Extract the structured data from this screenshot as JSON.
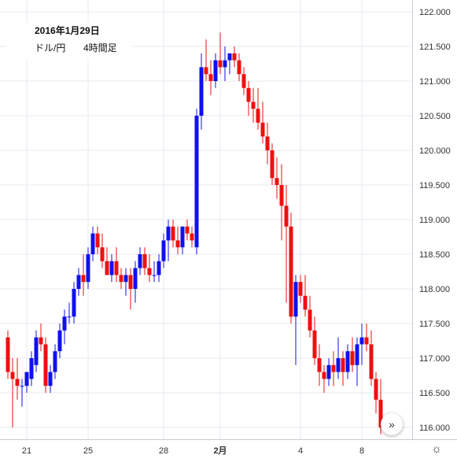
{
  "legend": {
    "date": "2016年1月29日",
    "pair": "ドル/円",
    "timeframe": "4時間足"
  },
  "icons": {
    "scroll_right": "chevron-double-right-icon",
    "settings": "gear-icon"
  },
  "colors": {
    "up": "#1010ee",
    "down": "#ee1010",
    "grid": "#e6eaf0",
    "axis_text": "#333333"
  },
  "chart_data": {
    "type": "candlestick",
    "title": "",
    "ylim": [
      115.85,
      122.1
    ],
    "yticks": [
      "116.000",
      "116.500",
      "117.000",
      "117.500",
      "118.000",
      "118.500",
      "119.000",
      "119.500",
      "120.000",
      "120.500",
      "121.000",
      "121.500",
      "122.000"
    ],
    "xticks": [
      "21",
      "25",
      "28",
      "2月",
      "4",
      "8"
    ],
    "xtick_bar_index": [
      4,
      17,
      33,
      45,
      62,
      75
    ],
    "grid": true,
    "candles": [
      [
        117.3,
        117.4,
        116.7,
        116.8
      ],
      [
        116.8,
        117.0,
        116.0,
        116.7
      ],
      [
        116.7,
        117.0,
        116.4,
        116.6
      ],
      [
        116.6,
        116.7,
        116.3,
        116.6
      ],
      [
        116.6,
        116.8,
        116.5,
        116.8
      ],
      [
        116.7,
        117.1,
        116.6,
        117.0
      ],
      [
        116.9,
        117.4,
        116.8,
        117.3
      ],
      [
        117.3,
        117.5,
        117.1,
        117.2
      ],
      [
        117.2,
        117.3,
        116.5,
        116.6
      ],
      [
        116.6,
        116.9,
        116.5,
        116.8
      ],
      [
        116.8,
        117.2,
        116.7,
        117.1
      ],
      [
        117.1,
        117.5,
        117.0,
        117.4
      ],
      [
        117.4,
        117.7,
        117.2,
        117.6
      ],
      [
        117.6,
        117.8,
        117.5,
        117.6
      ],
      [
        117.6,
        118.1,
        117.5,
        118.0
      ],
      [
        118.0,
        118.3,
        117.9,
        118.2
      ],
      [
        118.2,
        118.5,
        117.9,
        118.1
      ],
      [
        118.1,
        118.6,
        118.0,
        118.5
      ],
      [
        118.5,
        118.9,
        118.4,
        118.8
      ],
      [
        118.8,
        118.9,
        118.5,
        118.6
      ],
      [
        118.6,
        118.8,
        118.3,
        118.4
      ],
      [
        118.4,
        118.6,
        118.2,
        118.2
      ],
      [
        118.2,
        118.5,
        118.1,
        118.4
      ],
      [
        118.4,
        118.6,
        118.1,
        118.2
      ],
      [
        118.2,
        118.3,
        118.0,
        118.1
      ],
      [
        118.1,
        118.3,
        117.9,
        118.2
      ],
      [
        118.2,
        118.3,
        117.7,
        118.0
      ],
      [
        118.0,
        118.4,
        117.8,
        118.3
      ],
      [
        118.3,
        118.6,
        118.2,
        118.5
      ],
      [
        118.5,
        118.6,
        118.2,
        118.3
      ],
      [
        118.3,
        118.5,
        118.1,
        118.2
      ],
      [
        118.2,
        118.4,
        118.1,
        118.2
      ],
      [
        118.2,
        118.5,
        118.1,
        118.4
      ],
      [
        118.4,
        118.8,
        118.3,
        118.7
      ],
      [
        118.7,
        119.0,
        118.4,
        118.9
      ],
      [
        118.9,
        119.0,
        118.6,
        118.7
      ],
      [
        118.7,
        118.9,
        118.5,
        118.6
      ],
      [
        118.6,
        118.9,
        118.5,
        118.9
      ],
      [
        118.9,
        119.0,
        118.7,
        118.8
      ],
      [
        118.8,
        118.9,
        118.6,
        118.7
      ],
      [
        118.6,
        120.6,
        118.5,
        120.5
      ],
      [
        120.5,
        121.4,
        120.3,
        121.2
      ],
      [
        121.2,
        121.6,
        121.0,
        121.1
      ],
      [
        121.1,
        121.3,
        120.8,
        121.0
      ],
      [
        121.0,
        121.4,
        120.9,
        121.3
      ],
      [
        121.3,
        121.7,
        121.1,
        121.2
      ],
      [
        121.2,
        121.5,
        121.0,
        121.3
      ],
      [
        121.3,
        121.4,
        121.1,
        121.4
      ],
      [
        121.4,
        121.5,
        121.2,
        121.3
      ],
      [
        121.3,
        121.4,
        121.0,
        121.1
      ],
      [
        121.1,
        121.2,
        120.8,
        120.9
      ],
      [
        120.9,
        121.0,
        120.5,
        120.7
      ],
      [
        120.7,
        120.9,
        120.4,
        120.6
      ],
      [
        120.6,
        120.9,
        120.3,
        120.4
      ],
      [
        120.4,
        120.7,
        120.1,
        120.2
      ],
      [
        120.2,
        120.4,
        119.8,
        120.0
      ],
      [
        120.0,
        120.1,
        119.5,
        119.6
      ],
      [
        119.6,
        119.9,
        119.3,
        119.5
      ],
      [
        119.5,
        119.8,
        118.7,
        119.2
      ],
      [
        119.2,
        119.5,
        117.8,
        118.9
      ],
      [
        118.9,
        119.1,
        117.5,
        117.6
      ],
      [
        117.6,
        118.2,
        116.9,
        118.1
      ],
      [
        118.1,
        118.2,
        117.8,
        117.9
      ],
      [
        117.9,
        118.2,
        117.6,
        117.7
      ],
      [
        117.7,
        117.9,
        117.3,
        117.4
      ],
      [
        117.4,
        117.6,
        116.9,
        117.0
      ],
      [
        117.0,
        117.2,
        116.6,
        116.8
      ],
      [
        116.8,
        116.9,
        116.5,
        116.7
      ],
      [
        116.7,
        117.0,
        116.6,
        116.9
      ],
      [
        116.9,
        117.1,
        116.6,
        116.8
      ],
      [
        116.8,
        117.3,
        116.7,
        117.0
      ],
      [
        117.0,
        117.1,
        116.6,
        116.8
      ],
      [
        116.8,
        117.2,
        116.7,
        117.1
      ],
      [
        117.1,
        117.3,
        116.8,
        116.9
      ],
      [
        116.9,
        117.3,
        116.6,
        117.2
      ],
      [
        117.2,
        117.5,
        116.9,
        117.3
      ],
      [
        117.3,
        117.5,
        117.1,
        117.2
      ],
      [
        117.2,
        117.4,
        116.6,
        116.7
      ],
      [
        116.7,
        116.8,
        116.2,
        116.4
      ],
      [
        116.4,
        116.7,
        115.9,
        116.0
      ]
    ]
  }
}
